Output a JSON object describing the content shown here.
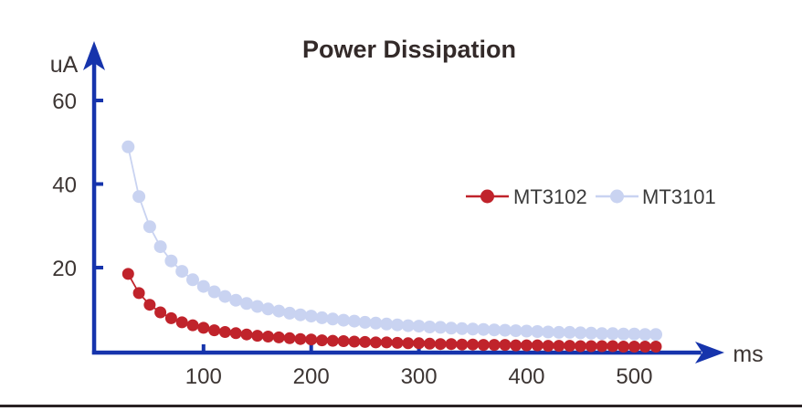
{
  "colors": {
    "axis": "#1634ac",
    "title_text": "#332a29",
    "tick_text": "#3c3533",
    "legend_text": "#3a3a3a",
    "series_mt3102": "#c0232b",
    "series_mt3101": "#c9d3f1",
    "bottom_rule": "#2a2224",
    "background": "#ffffff"
  },
  "chart_data": {
    "type": "line",
    "title": "Power Dissipation",
    "xlabel": "ms",
    "ylabel": "uA",
    "x_ticks": [
      100,
      200,
      300,
      400,
      500
    ],
    "y_ticks": [
      20,
      40,
      60
    ],
    "xlim": [
      0,
      560
    ],
    "ylim": [
      0,
      67
    ],
    "grid": false,
    "legend_position": "center-right",
    "x": [
      30,
      40,
      50,
      60,
      70,
      80,
      90,
      100,
      110,
      120,
      130,
      140,
      150,
      160,
      170,
      180,
      190,
      200,
      210,
      220,
      230,
      240,
      250,
      260,
      270,
      280,
      290,
      300,
      310,
      320,
      330,
      340,
      350,
      360,
      370,
      380,
      390,
      400,
      410,
      420,
      430,
      440,
      450,
      460,
      470,
      480,
      490,
      500,
      510,
      520
    ],
    "series": [
      {
        "name": "MT3102",
        "color": "#c0232b",
        "values": [
          18.5,
          13.9,
          11.1,
          9.3,
          7.9,
          6.9,
          6.2,
          5.6,
          5.0,
          4.6,
          4.3,
          4.0,
          3.7,
          3.5,
          3.3,
          3.1,
          2.9,
          2.8,
          2.6,
          2.5,
          2.4,
          2.3,
          2.2,
          2.1,
          2.1,
          2.0,
          1.9,
          1.9,
          1.8,
          1.7,
          1.7,
          1.6,
          1.6,
          1.5,
          1.5,
          1.5,
          1.4,
          1.4,
          1.4,
          1.3,
          1.3,
          1.3,
          1.2,
          1.2,
          1.2,
          1.2,
          1.1,
          1.1,
          1.1,
          1.1
        ]
      },
      {
        "name": "MT3101",
        "color": "#c9d3f1",
        "values": [
          48.9,
          37.0,
          29.8,
          25.0,
          21.6,
          19.1,
          17.1,
          15.5,
          14.2,
          13.1,
          12.2,
          11.4,
          10.7,
          10.1,
          9.6,
          9.1,
          8.7,
          8.4,
          8.0,
          7.7,
          7.4,
          7.2,
          6.9,
          6.7,
          6.5,
          6.3,
          6.1,
          6.0,
          5.8,
          5.7,
          5.5,
          5.4,
          5.3,
          5.2,
          5.1,
          5.0,
          4.9,
          4.8,
          4.7,
          4.6,
          4.5,
          4.5,
          4.4,
          4.3,
          4.2,
          4.2,
          4.1,
          4.1,
          4.0,
          4.0
        ]
      }
    ]
  },
  "legend": {
    "items": [
      {
        "label": "MT3102",
        "color": "#c0232b"
      },
      {
        "label": "MT3101",
        "color": "#c9d3f1"
      }
    ]
  }
}
